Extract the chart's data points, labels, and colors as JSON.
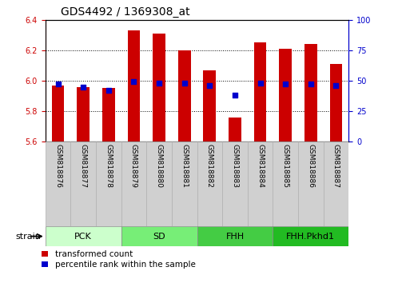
{
  "title": "GDS4492 / 1369308_at",
  "samples": [
    "GSM818876",
    "GSM818877",
    "GSM818878",
    "GSM818879",
    "GSM818880",
    "GSM818881",
    "GSM818882",
    "GSM818883",
    "GSM818884",
    "GSM818885",
    "GSM818886",
    "GSM818887"
  ],
  "transformed_count": [
    5.97,
    5.96,
    5.95,
    6.33,
    6.31,
    6.2,
    6.07,
    5.76,
    6.25,
    6.21,
    6.24,
    6.11
  ],
  "percentile_rank": [
    47,
    45,
    42,
    49,
    48,
    48,
    46,
    38,
    48,
    47,
    47,
    46
  ],
  "ylim_left": [
    5.6,
    6.4
  ],
  "ylim_right": [
    0,
    100
  ],
  "yticks_left": [
    5.6,
    5.8,
    6.0,
    6.2,
    6.4
  ],
  "yticks_right": [
    0,
    25,
    50,
    75,
    100
  ],
  "bar_color": "#cc0000",
  "dot_color": "#0000cc",
  "bar_bottom": 5.6,
  "groups": [
    {
      "label": "PCK",
      "start": 0,
      "end": 3
    },
    {
      "label": "SD",
      "start": 3,
      "end": 6
    },
    {
      "label": "FHH",
      "start": 6,
      "end": 9
    },
    {
      "label": "FHH.Pkhd1",
      "start": 9,
      "end": 12
    }
  ],
  "group_colors": [
    "#ccffcc",
    "#77ee77",
    "#44cc44",
    "#22bb22"
  ],
  "legend_tc": "transformed count",
  "legend_pr": "percentile rank within the sample",
  "title_fontsize": 10,
  "tick_fontsize": 7,
  "sample_fontsize": 6.5,
  "group_fontsize": 8,
  "legend_fontsize": 7.5,
  "bar_width": 0.5
}
